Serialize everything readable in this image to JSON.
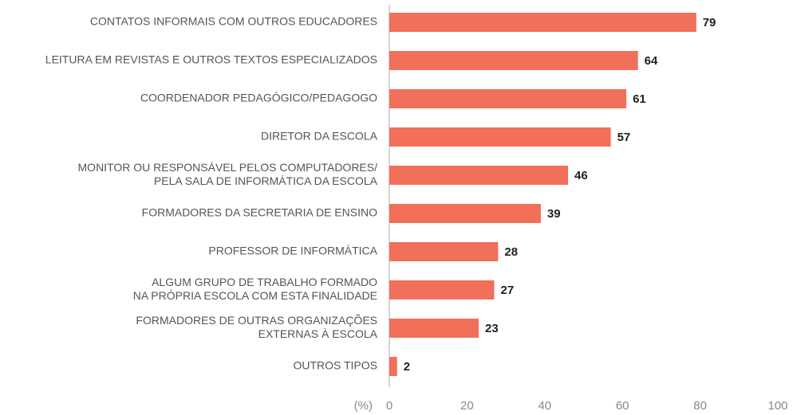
{
  "chart_data": {
    "type": "bar",
    "orientation": "horizontal",
    "categories": [
      [
        "CONTATOS INFORMAIS COM OUTROS EDUCADORES"
      ],
      [
        "LEITURA EM REVISTAS E OUTROS TEXTOS ESPECIALIZADOS"
      ],
      [
        "COORDENADOR PEDAGÓGICO/PEDAGOGO"
      ],
      [
        "DIRETOR DA ESCOLA"
      ],
      [
        "MONITOR OU RESPONSÁVEL PELOS COMPUTADORES/",
        "PELA SALA DE INFORMÁTICA DA ESCOLA"
      ],
      [
        "FORMADORES DA SECRETARIA DE ENSINO"
      ],
      [
        "PROFESSOR DE INFORMÁTICA"
      ],
      [
        "ALGUM GRUPO DE TRABALHO FORMADO",
        "NA PRÓPRIA ESCOLA COM ESTA FINALIDADE"
      ],
      [
        "FORMADORES DE OUTRAS ORGANIZAÇÕES",
        "EXTERNAS À ESCOLA"
      ],
      [
        "OUTROS TIPOS"
      ]
    ],
    "values": [
      79,
      64,
      61,
      57,
      46,
      39,
      28,
      27,
      23,
      2
    ],
    "color": "#f26f5a",
    "xlabel": "(%)",
    "xlim": [
      0,
      100
    ],
    "xticks": [
      0,
      20,
      40,
      60,
      80,
      100
    ]
  }
}
